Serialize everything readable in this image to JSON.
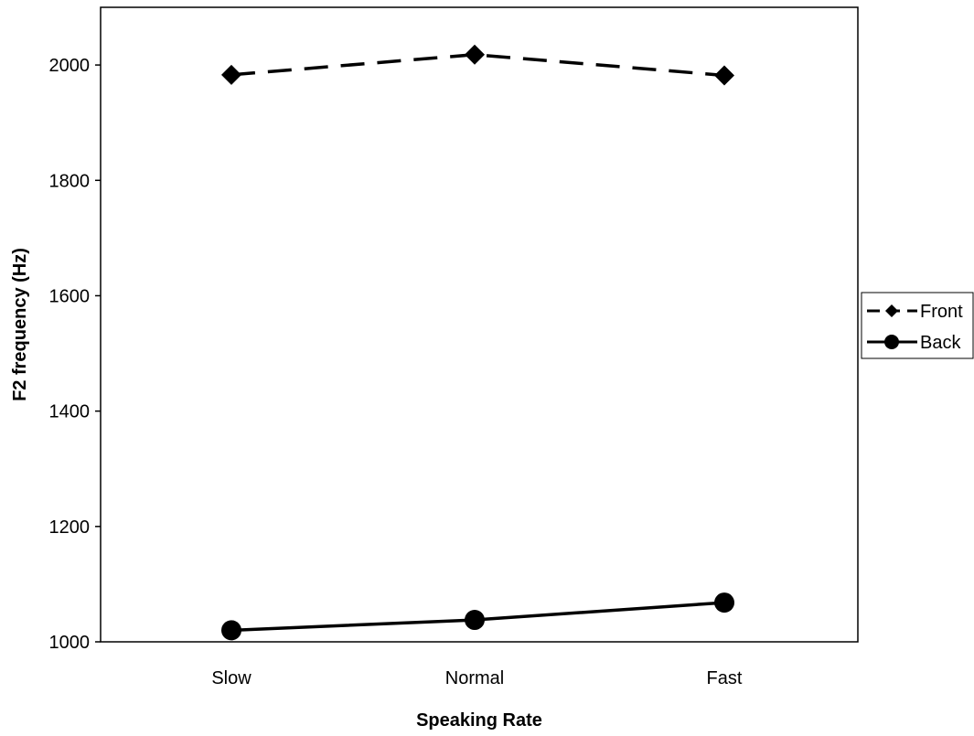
{
  "chart_data": {
    "type": "line",
    "title": "",
    "xlabel": "Speaking Rate",
    "ylabel": "F2 frequency (Hz)",
    "categories": [
      "Slow",
      "Normal",
      "Fast"
    ],
    "ylim": [
      1000,
      2100
    ],
    "yticks": [
      1000,
      1200,
      1400,
      1600,
      1800,
      2000
    ],
    "grid": false,
    "legend_position": "right",
    "series": [
      {
        "name": "Front",
        "values": [
          1983,
          2018,
          1982
        ],
        "line_style": "dashed",
        "marker": "diamond",
        "color": "#000000"
      },
      {
        "name": "Back",
        "values": [
          1020,
          1038,
          1068
        ],
        "line_style": "solid",
        "marker": "circle",
        "color": "#000000"
      }
    ]
  }
}
